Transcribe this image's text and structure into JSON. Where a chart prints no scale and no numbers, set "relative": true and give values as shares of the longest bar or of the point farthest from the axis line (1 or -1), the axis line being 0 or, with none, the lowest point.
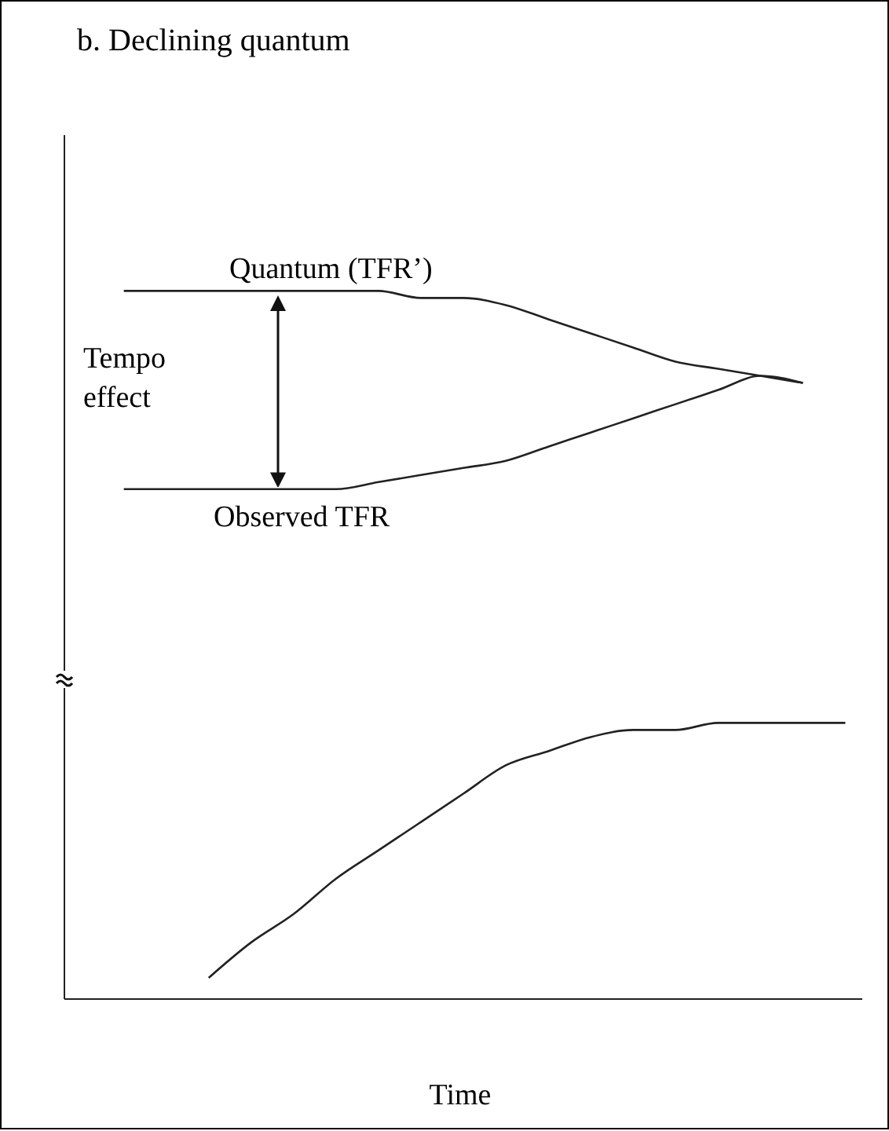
{
  "chart_data": {
    "type": "line",
    "title": "b. Declining quantum",
    "xlabel": "Time",
    "relative": true,
    "categories": [
      null,
      null,
      null,
      null,
      null,
      null,
      null,
      null,
      null,
      null,
      null,
      null,
      null,
      null,
      null,
      null,
      null,
      null,
      null
    ],
    "series": [
      {
        "name": "Quantum (TFR’)",
        "color": "#222222",
        "values": [
          null,
          1,
          1,
          1,
          1,
          1,
          1,
          1,
          0.99,
          0.99,
          0.98,
          0.96,
          0.94,
          0.92,
          0.9,
          0.89,
          0.88,
          0.87,
          null
        ]
      },
      {
        "name": "Observed TFR",
        "color": "#222222",
        "values": [
          null,
          0.72,
          0.72,
          0.72,
          0.72,
          0.72,
          0.72,
          0.73,
          0.74,
          0.75,
          0.76,
          0.78,
          0.8,
          0.82,
          0.84,
          0.86,
          0.88,
          0.87,
          null
        ]
      },
      {
        "color": "#222222",
        "values": [
          null,
          null,
          null,
          0.03,
          0.08,
          0.12,
          0.17,
          0.21,
          0.25,
          0.29,
          0.33,
          0.35,
          0.37,
          0.38,
          0.38,
          0.39,
          0.39,
          0.39,
          0.39
        ]
      }
    ],
    "annotations": [
      "Tempo effect"
    ]
  }
}
